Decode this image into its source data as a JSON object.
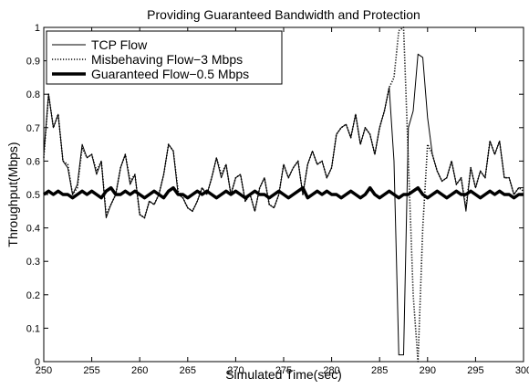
{
  "chart_data": {
    "type": "line",
    "title": "Providing Guaranteed Bandwidth and Protection",
    "xlabel": "Simulated Time(sec)",
    "ylabel": "Throughput(Mbps)",
    "xlim": [
      250,
      300
    ],
    "ylim": [
      0,
      1
    ],
    "xticks": [
      250,
      255,
      260,
      265,
      270,
      275,
      280,
      285,
      290,
      295,
      300
    ],
    "xtick_labels": [
      "250",
      "255",
      "260",
      "265",
      "270",
      "275",
      "280",
      "285",
      "290",
      "295",
      "300"
    ],
    "yticks": [
      0,
      0.1,
      0.2,
      0.3,
      0.4,
      0.5,
      0.6,
      0.7,
      0.8,
      0.9,
      1
    ],
    "ytick_labels": [
      "0",
      "0.1",
      "0.2",
      "0.3",
      "0.4",
      "0.5",
      "0.6",
      "0.7",
      "0.8",
      "0.9",
      "1"
    ],
    "grid": false,
    "legend": {
      "position": "top-left"
    },
    "series": [
      {
        "name": "TCP Flow",
        "style": "thin-solid",
        "color": "#000000",
        "x": [
          250,
          250.5,
          251,
          251.5,
          252,
          252.5,
          253,
          253.5,
          254,
          254.5,
          255,
          255.5,
          256,
          256.5,
          257,
          257.5,
          258,
          258.5,
          259,
          259.5,
          260,
          260.5,
          261,
          261.5,
          262,
          262.5,
          263,
          263.5,
          264,
          264.5,
          265,
          265.5,
          266,
          266.5,
          267,
          267.5,
          268,
          268.5,
          269,
          269.5,
          270,
          270.5,
          271,
          271.5,
          272,
          272.5,
          273,
          273.5,
          274,
          274.5,
          275,
          275.5,
          276,
          276.5,
          277,
          277.5,
          278,
          278.5,
          279,
          279.5,
          280,
          280.5,
          281,
          281.5,
          282,
          282.5,
          283,
          283.5,
          284,
          284.5,
          285,
          285.5,
          286,
          286.5,
          287,
          287.5,
          288,
          288.5,
          289,
          289.5,
          290,
          290.5,
          291,
          291.5,
          292,
          292.5,
          293,
          293.5,
          294,
          294.5,
          295,
          295.5,
          296,
          296.5,
          297,
          297.5,
          298,
          298.5,
          299,
          299.5,
          300
        ],
        "values": [
          0.62,
          0.8,
          0.7,
          0.74,
          0.6,
          0.58,
          0.5,
          0.53,
          0.65,
          0.61,
          0.62,
          0.56,
          0.6,
          0.43,
          0.47,
          0.5,
          0.58,
          0.62,
          0.53,
          0.56,
          0.44,
          0.43,
          0.48,
          0.47,
          0.5,
          0.56,
          0.65,
          0.63,
          0.5,
          0.49,
          0.46,
          0.45,
          0.48,
          0.52,
          0.5,
          0.55,
          0.61,
          0.55,
          0.59,
          0.5,
          0.55,
          0.56,
          0.48,
          0.5,
          0.45,
          0.52,
          0.55,
          0.47,
          0.46,
          0.5,
          0.59,
          0.55,
          0.58,
          0.6,
          0.5,
          0.59,
          0.63,
          0.59,
          0.6,
          0.55,
          0.58,
          0.68,
          0.7,
          0.71,
          0.67,
          0.74,
          0.65,
          0.7,
          0.68,
          0.62,
          0.7,
          0.75,
          0.82,
          0.6,
          0.02,
          0.02,
          0.7,
          0.75,
          0.92,
          0.91,
          0.73,
          0.62,
          0.57,
          0.54,
          0.55,
          0.6,
          0.53,
          0.55,
          0.45,
          0.58,
          0.52,
          0.57,
          0.55,
          0.66,
          0.62,
          0.66,
          0.55,
          0.55,
          0.5,
          0.52,
          0.52
        ]
      },
      {
        "name": "Misbehaving Flow−3 Mbps",
        "style": "dotted",
        "color": "#000000",
        "x": [
          250,
          250.5,
          251,
          251.5,
          252,
          252.5,
          253,
          253.5,
          254,
          254.5,
          255,
          255.5,
          256,
          256.5,
          257,
          257.5,
          258,
          258.5,
          259,
          259.5,
          260,
          260.5,
          261,
          261.5,
          262,
          262.5,
          263,
          263.5,
          264,
          264.5,
          265,
          265.5,
          266,
          266.5,
          267,
          267.5,
          268,
          268.5,
          269,
          269.5,
          270,
          270.5,
          271,
          271.5,
          272,
          272.5,
          273,
          273.5,
          274,
          274.5,
          275,
          275.5,
          276,
          276.5,
          277,
          277.5,
          278,
          278.5,
          279,
          279.5,
          280,
          280.5,
          281,
          281.5,
          282,
          282.5,
          283,
          283.5,
          284,
          284.5,
          285,
          285.5,
          286,
          286.5,
          287,
          287.5,
          288,
          288.5,
          289,
          289.5,
          290,
          290.5,
          291,
          291.5,
          292,
          292.5,
          293,
          293.5,
          294,
          294.5,
          295,
          295.5,
          296,
          296.5,
          297,
          297.5,
          298,
          298.5,
          299,
          299.5,
          300
        ],
        "values": [
          0.61,
          0.8,
          0.7,
          0.74,
          0.6,
          0.59,
          0.5,
          0.52,
          0.64,
          0.61,
          0.62,
          0.57,
          0.6,
          0.44,
          0.47,
          0.5,
          0.58,
          0.62,
          0.54,
          0.56,
          0.44,
          0.43,
          0.48,
          0.47,
          0.5,
          0.56,
          0.65,
          0.63,
          0.51,
          0.49,
          0.46,
          0.45,
          0.48,
          0.52,
          0.5,
          0.55,
          0.61,
          0.56,
          0.59,
          0.5,
          0.55,
          0.56,
          0.48,
          0.5,
          0.45,
          0.52,
          0.55,
          0.47,
          0.46,
          0.5,
          0.59,
          0.55,
          0.58,
          0.6,
          0.5,
          0.59,
          0.63,
          0.59,
          0.6,
          0.55,
          0.58,
          0.68,
          0.7,
          0.71,
          0.67,
          0.74,
          0.65,
          0.7,
          0.68,
          0.62,
          0.7,
          0.75,
          0.82,
          0.85,
          0.99,
          1.0,
          0.6,
          0.2,
          0.0,
          0.4,
          0.65,
          0.62,
          0.57,
          0.54,
          0.55,
          0.6,
          0.53,
          0.55,
          0.46,
          0.58,
          0.52,
          0.57,
          0.55,
          0.66,
          0.62,
          0.66,
          0.55,
          0.55,
          0.5,
          0.52,
          0.51
        ]
      },
      {
        "name": "Guaranteed Flow−0.5 Mbps",
        "style": "thick-solid",
        "color": "#000000",
        "x": [
          250,
          250.5,
          251,
          251.5,
          252,
          252.5,
          253,
          253.5,
          254,
          254.5,
          255,
          255.5,
          256,
          256.5,
          257,
          257.5,
          258,
          258.5,
          259,
          259.5,
          260,
          260.5,
          261,
          261.5,
          262,
          262.5,
          263,
          263.5,
          264,
          264.5,
          265,
          265.5,
          266,
          266.5,
          267,
          267.5,
          268,
          268.5,
          269,
          269.5,
          270,
          270.5,
          271,
          271.5,
          272,
          272.5,
          273,
          273.5,
          274,
          274.5,
          275,
          275.5,
          276,
          276.5,
          277,
          277.5,
          278,
          278.5,
          279,
          279.5,
          280,
          280.5,
          281,
          281.5,
          282,
          282.5,
          283,
          283.5,
          284,
          284.5,
          285,
          285.5,
          286,
          286.5,
          287,
          287.5,
          288,
          288.5,
          289,
          289.5,
          290,
          290.5,
          291,
          291.5,
          292,
          292.5,
          293,
          293.5,
          294,
          294.5,
          295,
          295.5,
          296,
          296.5,
          297,
          297.5,
          298,
          298.5,
          299,
          299.5,
          300
        ],
        "values": [
          0.5,
          0.51,
          0.5,
          0.51,
          0.5,
          0.5,
          0.49,
          0.5,
          0.51,
          0.5,
          0.51,
          0.5,
          0.49,
          0.51,
          0.52,
          0.5,
          0.5,
          0.51,
          0.5,
          0.51,
          0.5,
          0.49,
          0.5,
          0.51,
          0.5,
          0.49,
          0.51,
          0.52,
          0.5,
          0.5,
          0.49,
          0.5,
          0.51,
          0.5,
          0.51,
          0.5,
          0.49,
          0.5,
          0.51,
          0.5,
          0.51,
          0.5,
          0.49,
          0.5,
          0.51,
          0.5,
          0.5,
          0.49,
          0.5,
          0.51,
          0.5,
          0.49,
          0.5,
          0.51,
          0.52,
          0.49,
          0.5,
          0.51,
          0.5,
          0.51,
          0.5,
          0.5,
          0.49,
          0.5,
          0.51,
          0.5,
          0.49,
          0.5,
          0.52,
          0.5,
          0.49,
          0.5,
          0.51,
          0.5,
          0.49,
          0.5,
          0.5,
          0.51,
          0.52,
          0.5,
          0.49,
          0.5,
          0.51,
          0.5,
          0.49,
          0.5,
          0.51,
          0.5,
          0.5,
          0.51,
          0.5,
          0.49,
          0.5,
          0.51,
          0.5,
          0.51,
          0.5,
          0.5,
          0.49,
          0.5,
          0.5
        ]
      }
    ]
  }
}
